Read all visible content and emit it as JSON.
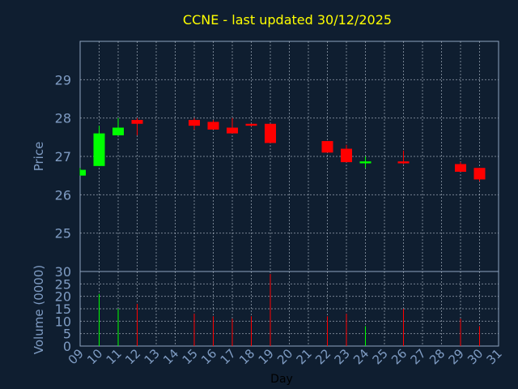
{
  "chart_data": {
    "type": "candlestick",
    "title": "CCNE - last updated 30/12/2025",
    "xlabel": "Day",
    "price_ylabel": "Price",
    "volume_ylabel": "Volume (0000)",
    "price_ylim": [
      24,
      30
    ],
    "price_ticks": [
      25,
      26,
      27,
      28,
      29
    ],
    "volume_ylim": [
      0,
      30
    ],
    "volume_ticks": [
      0,
      5,
      10,
      15,
      20,
      25,
      30
    ],
    "x_ticks": [
      "09",
      "10",
      "11",
      "12",
      "13",
      "14",
      "15",
      "16",
      "17",
      "18",
      "19",
      "20",
      "21",
      "22",
      "23",
      "24",
      "25",
      "26",
      "27",
      "28",
      "29",
      "30",
      "31"
    ],
    "grid": true,
    "up_color": "#00ff00",
    "down_color": "#ff0000",
    "candles": [
      {
        "day": "09",
        "open": 26.5,
        "high": 26.7,
        "low": 26.5,
        "close": 26.65,
        "volume": 0
      },
      {
        "day": "10",
        "open": 26.75,
        "high": 27.8,
        "low": 26.75,
        "close": 27.6,
        "volume": 21
      },
      {
        "day": "11",
        "open": 27.55,
        "high": 28.0,
        "low": 27.55,
        "close": 27.75,
        "volume": 15
      },
      {
        "day": "12",
        "open": 27.95,
        "high": 28.0,
        "low": 27.55,
        "close": 27.85,
        "volume": 17
      },
      {
        "day": "15",
        "open": 27.95,
        "high": 28.0,
        "low": 27.7,
        "close": 27.8,
        "volume": 13
      },
      {
        "day": "16",
        "open": 27.9,
        "high": 27.95,
        "low": 27.7,
        "close": 27.7,
        "volume": 12
      },
      {
        "day": "17",
        "open": 27.75,
        "high": 28.0,
        "low": 27.6,
        "close": 27.6,
        "volume": 11
      },
      {
        "day": "18",
        "open": 27.85,
        "high": 27.85,
        "low": 27.78,
        "close": 27.8,
        "volume": 12
      },
      {
        "day": "19",
        "open": 27.85,
        "high": 27.85,
        "low": 27.35,
        "close": 27.35,
        "volume": 29
      },
      {
        "day": "22",
        "open": 27.4,
        "high": 27.4,
        "low": 27.1,
        "close": 27.1,
        "volume": 12
      },
      {
        "day": "23",
        "open": 27.2,
        "high": 27.3,
        "low": 26.85,
        "close": 26.85,
        "volume": 13
      },
      {
        "day": "24",
        "open": 26.82,
        "high": 27.0,
        "low": 26.7,
        "close": 26.87,
        "volume": 8
      },
      {
        "day": "26",
        "open": 26.87,
        "high": 27.15,
        "low": 26.8,
        "close": 26.82,
        "volume": 15
      },
      {
        "day": "29",
        "open": 26.8,
        "high": 26.85,
        "low": 26.6,
        "close": 26.6,
        "volume": 11
      },
      {
        "day": "30",
        "open": 26.7,
        "high": 26.7,
        "low": 26.35,
        "close": 26.4,
        "volume": 8
      }
    ]
  }
}
